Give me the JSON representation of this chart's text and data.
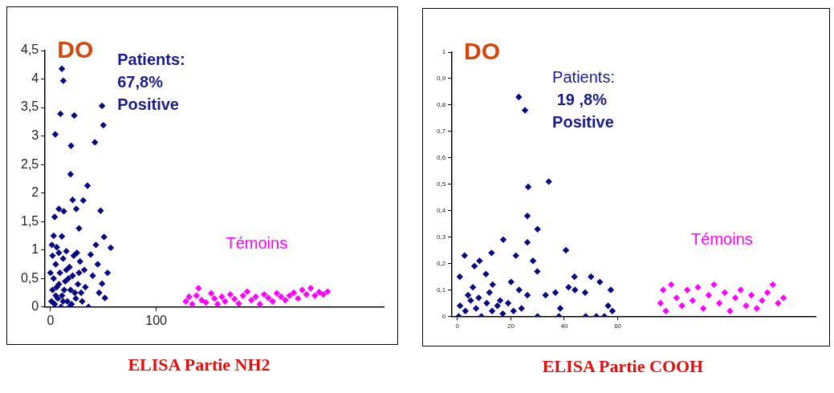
{
  "chart_data": [
    {
      "type": "scatter",
      "title": "ELISA Partie NH2",
      "ylabel": "DO",
      "annotations": [
        "Patients:\n67,8%\nPositive"
      ],
      "xlim": [
        -5,
        315
      ],
      "xticks": [
        0,
        100
      ],
      "ylim": [
        0,
        4.5
      ],
      "yticks": [
        0,
        {
          "value": 0.5,
          "label": "0,5"
        },
        1,
        {
          "value": 1.5,
          "label": "1,5"
        },
        2,
        {
          "value": 2.5,
          "label": "2,5"
        },
        3,
        {
          "value": 3.5,
          "label": "3,5"
        },
        4,
        {
          "value": 4.5,
          "label": "4,5"
        }
      ],
      "grid": false,
      "legend": false,
      "marker": "diamond",
      "series": [
        {
          "color": "#0a0a80",
          "x": [
            10.8,
            12.2,
            4.6,
            9.5,
            22.5,
            48.8,
            50,
            42,
            19.5,
            19,
            35,
            21,
            31,
            24.4,
            47.4,
            8,
            12.7,
            4,
            27,
            10.8,
            50.7,
            43,
            57,
            1.4,
            48.8,
            51.5,
            54,
            44.7,
            36,
            2,
            5,
            8,
            12,
            15,
            18,
            22,
            25,
            28,
            32,
            38,
            40,
            46,
            3,
            6,
            9,
            11,
            14,
            16,
            19,
            21,
            24,
            26,
            29,
            1,
            4,
            7,
            10,
            13,
            17,
            20,
            23,
            27,
            30,
            33,
            2,
            5,
            8,
            12,
            15,
            18,
            0,
            3,
            6
          ],
          "values": [
            4.18,
            3.97,
            3.03,
            3.39,
            3.36,
            3.53,
            3.19,
            2.89,
            2.83,
            2.33,
            2.13,
            1.88,
            1.87,
            1.72,
            1.69,
            1.72,
            1.68,
            1.58,
            1.38,
            1.24,
            1.23,
            1.09,
            1.04,
            1.09,
            0.41,
            0.16,
            0.6,
            0.75,
            0,
            0.9,
            0.75,
            0.95,
            0.85,
            0.98,
            0.7,
            0.9,
            0.95,
            0.8,
            0.65,
            0.92,
            0.55,
            0.25,
            0.5,
            0.35,
            0.6,
            0.2,
            0.45,
            0.1,
            0.3,
            0.55,
            0.15,
            0.4,
            0.25,
            0.1,
            0.05,
            0.15,
            0,
            0.3,
            0.5,
            0.05,
            0.25,
            0.6,
            0.1,
            0.35,
            0.3,
            0.2,
            0.4,
            0.1,
            0.65,
            0,
            0.6,
            1.25,
            1.05
          ]
        },
        {
          "name": "Témoins",
          "color": "#ff00ff",
          "x": [
            128,
            131,
            134,
            138,
            140,
            143,
            147,
            152,
            155,
            158,
            162,
            165,
            170,
            174,
            178,
            182,
            186,
            190,
            194,
            198,
            202,
            206,
            210,
            214,
            218,
            222,
            226,
            230,
            234,
            238,
            242,
            246,
            250,
            254,
            258,
            262
          ],
          "values": [
            0.1,
            0.18,
            0.05,
            0.2,
            0.33,
            0.12,
            0.08,
            0.24,
            0.15,
            0.05,
            0.18,
            0.1,
            0.22,
            0.14,
            0.06,
            0.2,
            0.27,
            0.12,
            0.18,
            0.05,
            0.22,
            0.16,
            0.1,
            0.24,
            0.18,
            0.12,
            0.2,
            0.25,
            0.15,
            0.3,
            0.22,
            0.33,
            0.2,
            0.26,
            0.22,
            0.27
          ]
        }
      ]
    },
    {
      "type": "scatter",
      "title": "ELISA Partie COOH",
      "ylabel": "DO",
      "annotations": [
        "Patients:\n 19 ,8%\nPositive"
      ],
      "xlim": [
        -2,
        134
      ],
      "xticks": [
        0,
        20,
        40,
        60
      ],
      "ylim": [
        0,
        1
      ],
      "yticks": [
        0,
        {
          "value": 0.1,
          "label": "0,1"
        },
        {
          "value": 0.2,
          "label": "0,2"
        },
        {
          "value": 0.3,
          "label": "0,3"
        },
        {
          "value": 0.4,
          "label": "0,4"
        },
        {
          "value": 0.5,
          "label": "0,5"
        },
        {
          "value": 0.6,
          "label": "0,6"
        },
        {
          "value": 0.7,
          "label": "0,7"
        },
        {
          "value": 0.8,
          "label": "0,8"
        },
        {
          "value": 0.9,
          "label": "0,9"
        },
        1
      ],
      "grid": false,
      "legend": false,
      "marker": "diamond",
      "series": [
        {
          "color": "#0a0a80",
          "x": [
            23,
            25.3,
            26.5,
            34.2,
            26.2,
            30,
            26.2,
            17.2,
            40.6,
            12.8,
            2.7,
            21.9,
            28.3,
            8.3,
            6.4,
            10.7,
            0.9,
            50,
            43.8,
            29.9,
            53.3,
            57.4,
            20.1,
            13.2,
            5.8,
            41.6,
            47.8,
            33,
            36.7,
            23.1,
            26.2,
            56.4,
            58,
            38.5,
            30,
            38,
            48,
            52,
            55,
            1,
            3,
            5,
            7,
            9,
            11,
            13,
            15,
            17,
            19,
            21,
            4,
            8,
            12,
            16,
            24,
            44,
            0.5
          ],
          "values": [
            0.83,
            0.78,
            0.49,
            0.51,
            0.38,
            0.33,
            0.28,
            0.29,
            0.25,
            0.24,
            0.23,
            0.23,
            0.21,
            0.21,
            0.19,
            0.16,
            0.15,
            0.15,
            0.15,
            0.17,
            0.13,
            0.1,
            0.13,
            0.12,
            0.11,
            0.11,
            0.09,
            0.08,
            0.09,
            0.1,
            0.08,
            0.04,
            0.02,
            0.03,
            0,
            0,
            0,
            0,
            0,
            0.04,
            0.02,
            0.06,
            0.03,
            0,
            0.05,
            0.02,
            0.04,
            0.01,
            0.05,
            0.02,
            0.08,
            0.07,
            0.09,
            0.06,
            0.03,
            0.1,
            0
          ]
        },
        {
          "name": "Témoins",
          "color": "#ff00ff",
          "x": [
            76,
            77,
            78,
            80,
            82,
            84,
            86,
            88,
            90,
            92,
            94,
            96,
            98,
            100,
            102,
            104,
            106,
            108,
            110,
            112,
            114,
            116,
            118,
            120,
            122
          ],
          "values": [
            0.05,
            0.1,
            0.02,
            0.12,
            0.07,
            0.04,
            0.1,
            0.06,
            0.11,
            0.03,
            0.08,
            0.12,
            0.05,
            0.09,
            0.02,
            0.07,
            0.1,
            0.04,
            0.08,
            0.03,
            0.06,
            0.09,
            0.12,
            0.05,
            0.07
          ]
        }
      ]
    }
  ]
}
